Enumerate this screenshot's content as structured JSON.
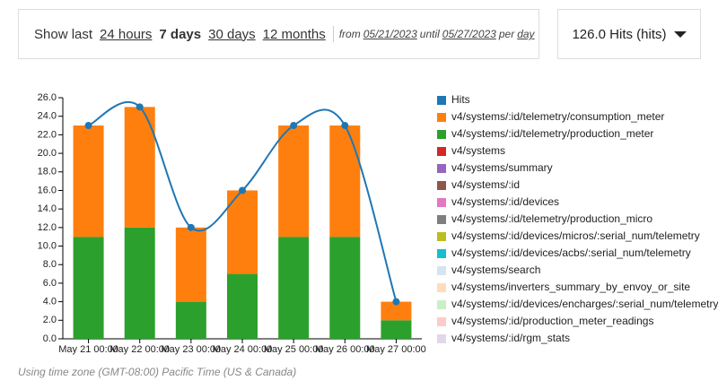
{
  "controls": {
    "show_last": "Show last",
    "ranges": [
      "24 hours",
      "7 days",
      "30 days",
      "12 months"
    ],
    "active_range": 1,
    "from": "from",
    "start_date": "05/21/2023",
    "until": "until",
    "end_date": "05/27/2023",
    "per": "per",
    "period": "day",
    "metric": "126.0 Hits (hits)"
  },
  "chart_data": {
    "type": "bar",
    "categories": [
      "May 21 00:00",
      "May 22 00:00",
      "May 23 00:00",
      "May 24 00:00",
      "May 25 00:00",
      "May 26 00:00",
      "May 27 00:00"
    ],
    "series": [
      {
        "name": "Hits",
        "color": "#1f77b4",
        "kind": "line",
        "values": [
          23,
          25,
          12,
          16,
          23,
          23,
          4
        ]
      },
      {
        "name": "v4/systems/:id/telemetry/consumption_meter",
        "color": "#ff7f0e",
        "kind": "bar",
        "values": [
          12,
          13,
          8,
          9,
          12,
          12,
          2
        ]
      },
      {
        "name": "v4/systems/:id/telemetry/production_meter",
        "color": "#2ca02c",
        "kind": "bar",
        "values": [
          11,
          12,
          4,
          7,
          11,
          11,
          2
        ]
      }
    ],
    "legend_extra": [
      {
        "name": "v4/systems",
        "color": "#d62728",
        "faded": false
      },
      {
        "name": "v4/systems/summary",
        "color": "#9467bd",
        "faded": false
      },
      {
        "name": "v4/systems/:id",
        "color": "#8c564b",
        "faded": false
      },
      {
        "name": "v4/systems/:id/devices",
        "color": "#e377c2",
        "faded": false
      },
      {
        "name": "v4/systems/:id/telemetry/production_micro",
        "color": "#7f7f7f",
        "faded": false
      },
      {
        "name": "v4/systems/:id/devices/micros/:serial_num/telemetry",
        "color": "#bcbd22",
        "faded": false
      },
      {
        "name": "v4/systems/:id/devices/acbs/:serial_num/telemetry",
        "color": "#17becf",
        "faded": false
      },
      {
        "name": "v4/systems/search",
        "color": "#aec7e8",
        "faded": true
      },
      {
        "name": "v4/systems/inverters_summary_by_envoy_or_site",
        "color": "#ffbb78",
        "faded": true
      },
      {
        "name": "v4/systems/:id/devices/encharges/:serial_num/telemetry",
        "color": "#98df8a",
        "faded": true
      },
      {
        "name": "v4/systems/:id/production_meter_readings",
        "color": "#ff9896",
        "faded": true
      },
      {
        "name": "v4/systems/:id/rgm_stats",
        "color": "#c5b0d5",
        "faded": true
      }
    ],
    "ylim": [
      0,
      26
    ],
    "yticks": [
      {
        "value": 0,
        "label": "0.0"
      },
      {
        "value": 2,
        "label": "2.0"
      },
      {
        "value": 4,
        "label": "4.0"
      },
      {
        "value": 6,
        "label": "6.0"
      },
      {
        "value": 8,
        "label": "8.0"
      },
      {
        "value": 10,
        "label": "10.0"
      },
      {
        "value": 12,
        "label": "12.0"
      },
      {
        "value": 14,
        "label": "14.0"
      },
      {
        "value": 16,
        "label": "16.0"
      },
      {
        "value": 18,
        "label": "18.0"
      },
      {
        "value": 20,
        "label": "20.0"
      },
      {
        "value": 22,
        "label": "22.0"
      },
      {
        "value": 24,
        "label": "24.0"
      },
      {
        "value": 26,
        "label": "26.0"
      }
    ],
    "grid": false
  },
  "footer": "Using time zone (GMT-08:00) Pacific Time (US & Canada)"
}
